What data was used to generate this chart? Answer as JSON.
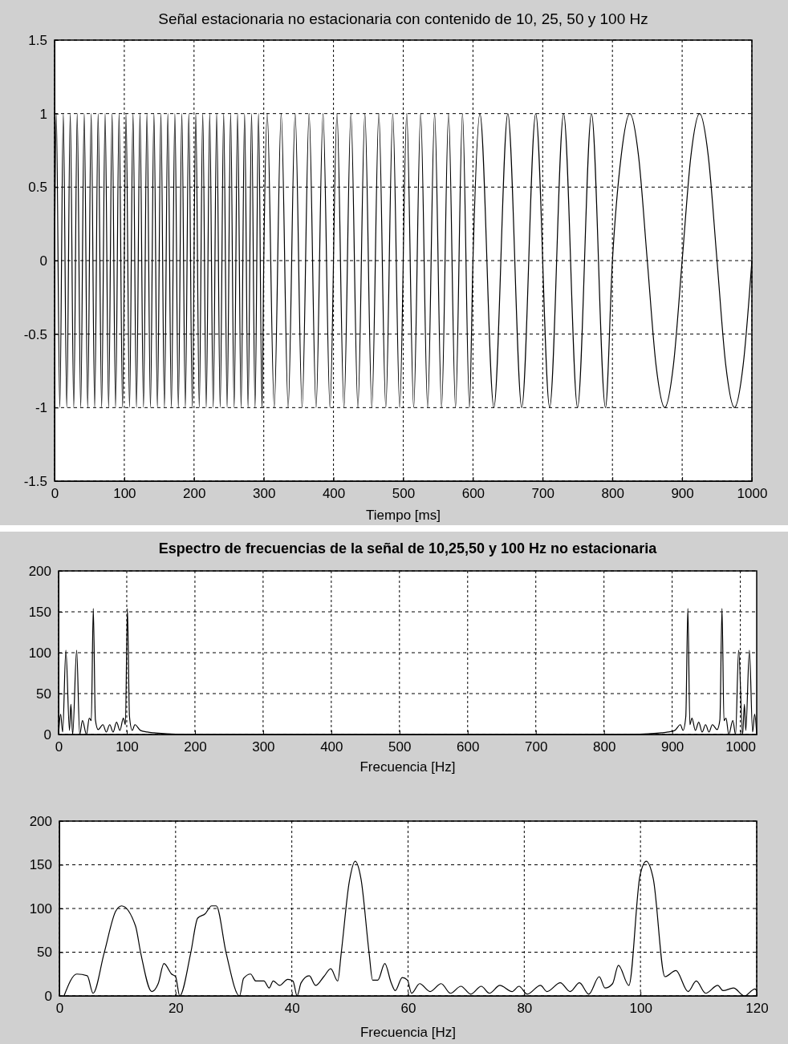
{
  "chart_data": [
    {
      "type": "line",
      "title": "Señal estacionaria no estacionaria con contenido de 10, 25, 50 y 100 Hz",
      "xlabel": "Tiempo [ms]",
      "xlim": [
        0,
        1000
      ],
      "ylim": [
        -1.5,
        1.5
      ],
      "xticks": [
        0,
        100,
        200,
        300,
        400,
        500,
        600,
        700,
        800,
        900,
        1000
      ],
      "yticks": [
        -1.5,
        -1,
        -0.5,
        0,
        0.5,
        1,
        1.5
      ],
      "grid": true,
      "series": [
        {
          "color": "#000000",
          "x": [
            0,
            2.5,
            7.5,
            12.5,
            17.5,
            22.5,
            27.5,
            32.5,
            37.5,
            42.5,
            47.5,
            52.5,
            57.5,
            62.5,
            67.5,
            72.5,
            77.5,
            82.5,
            87.5,
            92.5,
            97.5,
            102.5,
            107.5,
            112.5,
            117.5,
            122.5,
            127.5,
            132.5,
            137.5,
            142.5,
            147.5,
            152.5,
            157.5,
            162.5,
            167.5,
            172.5,
            177.5,
            182.5,
            187.5,
            192.5,
            197.5,
            202.5,
            207.5,
            212.5,
            217.5,
            222.5,
            227.5,
            232.5,
            237.5,
            242.5,
            247.5,
            252.5,
            257.5,
            262.5,
            267.5,
            272.5,
            277.5,
            282.5,
            287.5,
            292.5,
            297.5,
            300,
            305,
            315,
            325,
            335,
            345,
            355,
            365,
            375,
            385,
            395,
            405,
            415,
            425,
            435,
            445,
            455,
            465,
            475,
            485,
            495,
            505,
            515,
            525,
            535,
            545,
            555,
            565,
            575,
            585,
            595,
            600,
            610,
            630,
            650,
            670,
            690,
            710,
            730,
            750,
            770,
            790,
            800,
            812.5,
            825,
            837.5,
            850,
            862.5,
            875,
            887.5,
            900,
            912.5,
            925,
            937.5,
            950,
            962.5,
            975,
            987.5,
            1000
          ],
          "values": [
            0,
            1,
            -1,
            1,
            -1,
            1,
            -1,
            1,
            -1,
            1,
            -1,
            1,
            -1,
            1,
            -1,
            1,
            -1,
            1,
            -1,
            1,
            -1,
            1,
            -1,
            1,
            -1,
            1,
            -1,
            1,
            -1,
            1,
            -1,
            1,
            -1,
            1,
            -1,
            1,
            -1,
            1,
            -1,
            1,
            -1,
            1,
            -1,
            1,
            -1,
            1,
            -1,
            1,
            -1,
            1,
            -1,
            1,
            -1,
            1,
            -1,
            1,
            -1,
            1,
            -1,
            1,
            -1,
            0,
            1,
            -1,
            1,
            -1,
            1,
            -1,
            1,
            -1,
            1,
            -1,
            1,
            -1,
            1,
            -1,
            1,
            -1,
            1,
            -1,
            1,
            -1,
            1,
            -1,
            1,
            -1,
            1,
            -1,
            1,
            -1,
            1,
            -1,
            0,
            1,
            -1,
            1,
            -1,
            1,
            -1,
            1,
            -1,
            1,
            -1,
            0,
            0.71,
            1,
            0.71,
            0,
            -0.71,
            -1,
            -0.71,
            0,
            0.71,
            1,
            0.71,
            0,
            -0.71,
            -1,
            -0.71,
            0
          ]
        }
      ]
    },
    {
      "type": "line",
      "title": "Espectro de frecuencias de la señal de 10,25,50 y 100 Hz no estacionaria",
      "xlabel": "Frecuencia [Hz]",
      "xlim": [
        0,
        1024
      ],
      "ylim": [
        0,
        200
      ],
      "xticks": [
        0,
        100,
        200,
        300,
        400,
        500,
        600,
        700,
        800,
        900,
        1000
      ],
      "yticks": [
        0,
        50,
        100,
        150,
        200
      ],
      "grid": true,
      "series": [
        {
          "color": "#000000",
          "x": [
            0,
            3,
            6,
            10.7,
            16,
            18,
            20.7,
            26.5,
            31,
            35,
            41,
            45,
            48,
            50.9,
            54,
            58,
            65,
            70,
            75,
            80,
            85,
            90,
            95,
            98,
            101,
            104,
            108,
            112,
            120,
            130,
            140,
            160,
            200,
            824,
            864,
            884,
            894,
            904,
            912,
            916,
            920,
            923,
            926,
            929,
            934,
            939,
            944,
            949,
            954,
            959,
            966,
            970,
            973.1,
            976,
            979,
            983,
            989,
            993,
            997.5,
            1003.3,
            1006,
            1008,
            1013.3,
            1018,
            1021,
            1024
          ],
          "values": [
            0,
            25,
            3,
            103,
            5,
            37,
            0,
            103,
            0,
            17,
            0,
            20,
            17,
            154,
            18,
            6,
            12,
            3,
            12,
            3,
            15,
            5,
            20,
            12,
            154,
            22,
            5,
            12,
            5,
            3,
            2,
            1,
            0,
            0,
            1,
            2,
            3,
            5,
            12,
            5,
            22,
            154,
            12,
            20,
            5,
            15,
            3,
            12,
            3,
            12,
            6,
            18,
            154,
            17,
            20,
            0,
            17,
            0,
            103,
            0,
            37,
            5,
            103,
            3,
            25,
            0
          ]
        }
      ]
    },
    {
      "type": "line",
      "xlabel": "Frecuencia [Hz]",
      "xlim": [
        0,
        120
      ],
      "ylim": [
        0,
        200
      ],
      "xticks": [
        0,
        20,
        40,
        60,
        80,
        100,
        120
      ],
      "yticks": [
        0,
        50,
        100,
        150,
        200
      ],
      "grid": true,
      "series": [
        {
          "color": "#000000",
          "x": [
            0.8,
            3.0,
            4.8,
            5.8,
            7.7,
            9.7,
            10.7,
            13.1,
            14.0,
            15.9,
            17.0,
            18.0,
            19.3,
            20.0,
            20.7,
            22.6,
            23.8,
            25.1,
            26.2,
            27.0,
            28.7,
            31.0,
            31.7,
            32.9,
            33.8,
            35.2,
            36.1,
            36.8,
            37.9,
            39.3,
            40.2,
            40.9,
            41.6,
            43.0,
            44.1,
            45.5,
            46.7,
            47.9,
            48.5,
            49.9,
            50.9,
            51.9,
            53.3,
            53.9,
            54.8,
            56.0,
            57.1,
            57.8,
            59.0,
            59.9,
            60.6,
            62.0,
            63.8,
            65.7,
            67.3,
            69.1,
            70.8,
            72.6,
            74.0,
            75.8,
            77.9,
            79.1,
            80.5,
            82.8,
            83.9,
            86.2,
            87.9,
            89.5,
            91.1,
            92.9,
            93.9,
            95.2,
            96.2,
            98.0,
            99.9,
            101.0,
            102.2,
            104.2,
            106.1,
            108.2,
            109.6,
            111.2,
            113.3,
            114.2,
            116.0,
            117.9,
            119.7,
            120
          ],
          "values": [
            0,
            25,
            23,
            3,
            49,
            97,
            103,
            80,
            49,
            5,
            14,
            37,
            25,
            22,
            0,
            49,
            89,
            94,
            103,
            103,
            49,
            0,
            20,
            25,
            17,
            17,
            9,
            17,
            12,
            19,
            17,
            0,
            15,
            23,
            12,
            22,
            31,
            17,
            49,
            131,
            154,
            134,
            49,
            18,
            18,
            37,
            15,
            6,
            21,
            18,
            3,
            14,
            5,
            14,
            3,
            11,
            2,
            11,
            3,
            12,
            5,
            11,
            2,
            12,
            5,
            15,
            5,
            15,
            2,
            22,
            9,
            14,
            35,
            12,
            137,
            154,
            134,
            22,
            29,
            5,
            17,
            3,
            12,
            6,
            9,
            0,
            8,
            6
          ]
        }
      ]
    }
  ]
}
